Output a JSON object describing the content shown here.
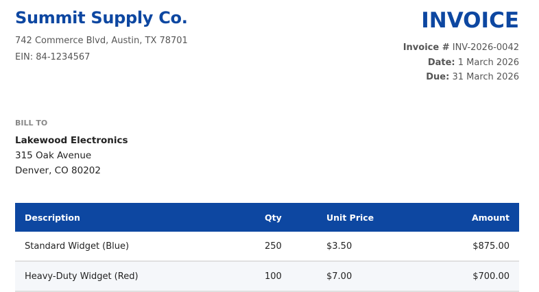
{
  "seller": {
    "name": "Summit Supply Co.",
    "address": "742 Commerce Blvd, Austin, TX 78701",
    "ein": "EIN: 84-1234567"
  },
  "invoice": {
    "title": "INVOICE",
    "number_label": "Invoice #",
    "number": "INV-2026-0042",
    "date_label": "Date:",
    "date": "1 March 2026",
    "due_label": "Due:",
    "due": "31 March 2026"
  },
  "bill_to": {
    "label": "BILL TO",
    "name": "Lakewood Electronics",
    "street": "315 Oak Avenue",
    "city": "Denver, CO 80202"
  },
  "table": {
    "headers": [
      "Description",
      "Qty",
      "Unit Price",
      "Amount"
    ],
    "rows": [
      [
        "Standard Widget (Blue)",
        "250",
        "$3.50",
        "$875.00"
      ],
      [
        "Heavy-Duty Widget (Red)",
        "100",
        "$7.00",
        "$700.00"
      ]
    ]
  },
  "colors": {
    "brand": "#0d47a1"
  }
}
